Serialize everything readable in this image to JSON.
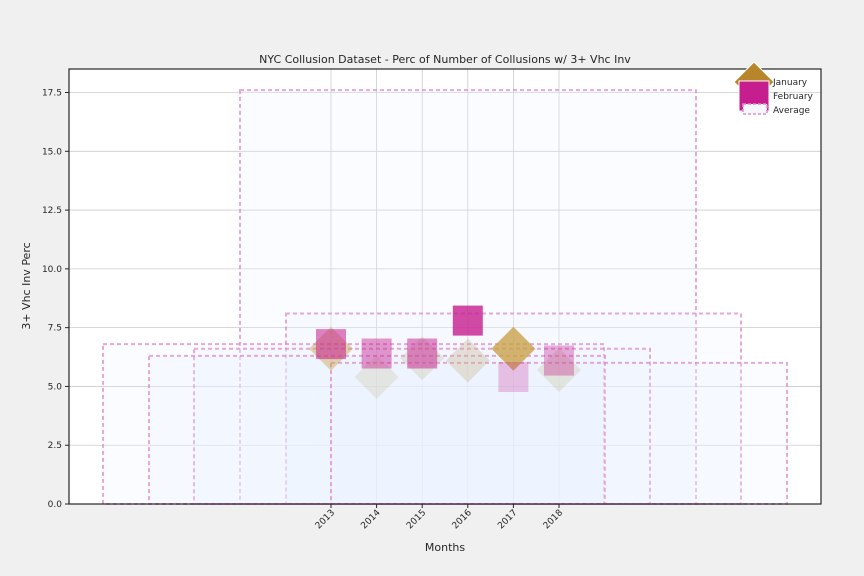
{
  "chart_data": {
    "type": "bar",
    "title": "NYC Collusion Dataset - Perc of Number of Collusions w/ 3+ Vhc Inv",
    "xlabel": "Months",
    "ylabel": "3+ Vhc Inv Perc",
    "categories": [
      "2013",
      "2014",
      "2015",
      "2016",
      "2017",
      "2018"
    ],
    "ylim": [
      0,
      18.5
    ],
    "yticks": [
      "0.0",
      "2.5",
      "5.0",
      "7.5",
      "10.0",
      "12.5",
      "15.0",
      "17.5"
    ],
    "grid": true,
    "legend_position": "top-right",
    "series": [
      {
        "name": "January",
        "marker": "diamond",
        "color": "#b8862a",
        "values": [
          6.6,
          5.4,
          6.2,
          6.1,
          6.6,
          5.7
        ]
      },
      {
        "name": "February",
        "marker": "square",
        "color": "#c71e8f",
        "values": [
          6.8,
          6.4,
          6.4,
          7.8,
          5.4,
          6.1
        ]
      },
      {
        "name": "Average",
        "marker": "dashed-box",
        "color": "#e08ccd",
        "bars": [
          {
            "start": "2013",
            "end": "2018",
            "value": 17.6
          },
          {
            "start": "2014",
            "end": "2018",
            "value": 8.1
          },
          {
            "start": "2013",
            "end": "2018",
            "value": 6.8
          },
          {
            "start": "2013",
            "end": "2018",
            "value": 6.6
          },
          {
            "start": "2013",
            "end": "2018",
            "value": 6.3
          },
          {
            "start": "2015",
            "end": "2018",
            "value": 6.0
          }
        ]
      }
    ]
  }
}
